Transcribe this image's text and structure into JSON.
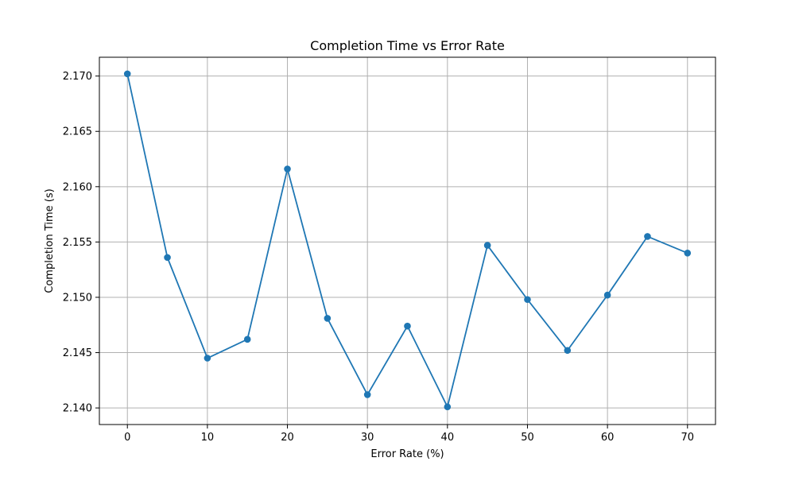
{
  "chart_data": {
    "type": "line",
    "title": "Completion Time vs Error Rate",
    "xlabel": "Error Rate (%)",
    "ylabel": "Completion Time (s)",
    "x": [
      0,
      5,
      10,
      15,
      20,
      25,
      30,
      35,
      40,
      45,
      50,
      55,
      60,
      65,
      70
    ],
    "series": [
      {
        "values": [
          2.1702,
          2.1536,
          2.1445,
          2.1462,
          2.1616,
          2.1481,
          2.1412,
          2.1474,
          2.1401,
          2.1547,
          2.1498,
          2.1452,
          2.1502,
          2.1555,
          2.154
        ],
        "color": "#1f77b4",
        "marker": "circle"
      }
    ],
    "xlim": [
      -3.5,
      73.5
    ],
    "ylim": [
      2.1385,
      2.1717
    ],
    "xticks": [
      0,
      10,
      20,
      30,
      40,
      50,
      60,
      70
    ],
    "xtick_labels": [
      "0",
      "10",
      "20",
      "30",
      "40",
      "50",
      "60",
      "70"
    ],
    "yticks": [
      2.14,
      2.145,
      2.15,
      2.155,
      2.16,
      2.165,
      2.17
    ],
    "ytick_labels": [
      "2.140",
      "2.145",
      "2.150",
      "2.155",
      "2.160",
      "2.165",
      "2.170"
    ],
    "grid": true
  }
}
